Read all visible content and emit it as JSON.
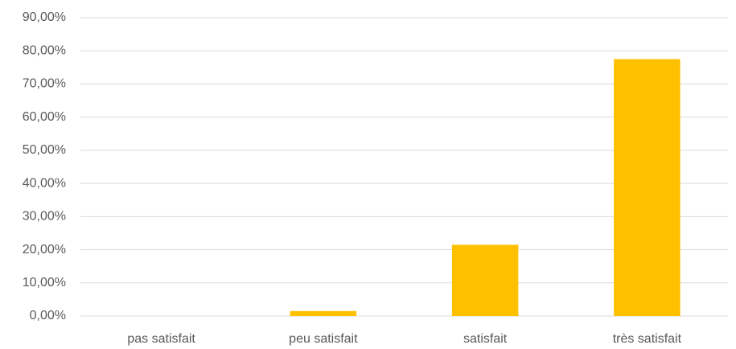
{
  "chart_data": {
    "type": "bar",
    "categories": [
      "pas satisfait",
      "peu satisfait",
      "satisfait",
      "très satisfait"
    ],
    "values": [
      0,
      1.5,
      21.5,
      77.5
    ],
    "color": "#ffc000",
    "ylim": [
      0,
      90
    ],
    "yticks": [
      {
        "value": 0,
        "label": "0,00%"
      },
      {
        "value": 10,
        "label": "10,00%"
      },
      {
        "value": 20,
        "label": "20,00%"
      },
      {
        "value": 30,
        "label": "30,00%"
      },
      {
        "value": 40,
        "label": "40,00%"
      },
      {
        "value": 50,
        "label": "50,00%"
      },
      {
        "value": 60,
        "label": "60,00%"
      },
      {
        "value": 70,
        "label": "70,00%"
      },
      {
        "value": 80,
        "label": "80,00%"
      },
      {
        "value": 90,
        "label": "90,00%"
      }
    ],
    "grid": true
  }
}
